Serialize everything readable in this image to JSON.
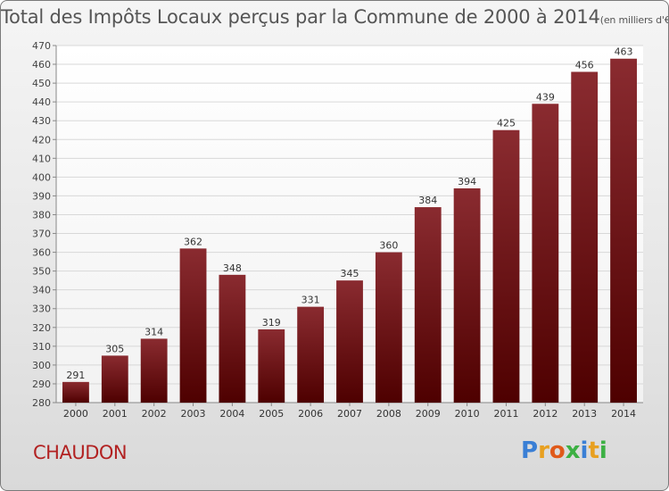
{
  "title": {
    "main": "Total des Impôts Locaux perçus par la Commune de 2000 à 2014",
    "unit": "(en milliers d'€)"
  },
  "commune": "CHAUDON",
  "logo": {
    "letters": [
      "P",
      "r",
      "o",
      "x",
      "i",
      "t",
      "i"
    ],
    "colors": [
      "#3a7fd5",
      "#e8a020",
      "#e05a1a",
      "#3cb043",
      "#3a7fd5",
      "#e8a020",
      "#3cb043"
    ]
  },
  "chart_data": {
    "type": "bar",
    "title": "Total des Impôts Locaux perçus par la Commune de 2000 à 2014",
    "categories": [
      "2000",
      "2001",
      "2002",
      "2003",
      "2004",
      "2005",
      "2006",
      "2007",
      "2008",
      "2009",
      "2010",
      "2011",
      "2012",
      "2013",
      "2014"
    ],
    "values": [
      291,
      305,
      314,
      362,
      348,
      319,
      331,
      345,
      360,
      384,
      394,
      425,
      439,
      456,
      463
    ],
    "ylim": [
      280,
      470
    ],
    "yticks": [
      280,
      290,
      300,
      310,
      320,
      330,
      340,
      350,
      360,
      370,
      380,
      390,
      400,
      410,
      420,
      430,
      440,
      450,
      460,
      470
    ],
    "grid": true,
    "bar_color": "#7a1a1e"
  }
}
